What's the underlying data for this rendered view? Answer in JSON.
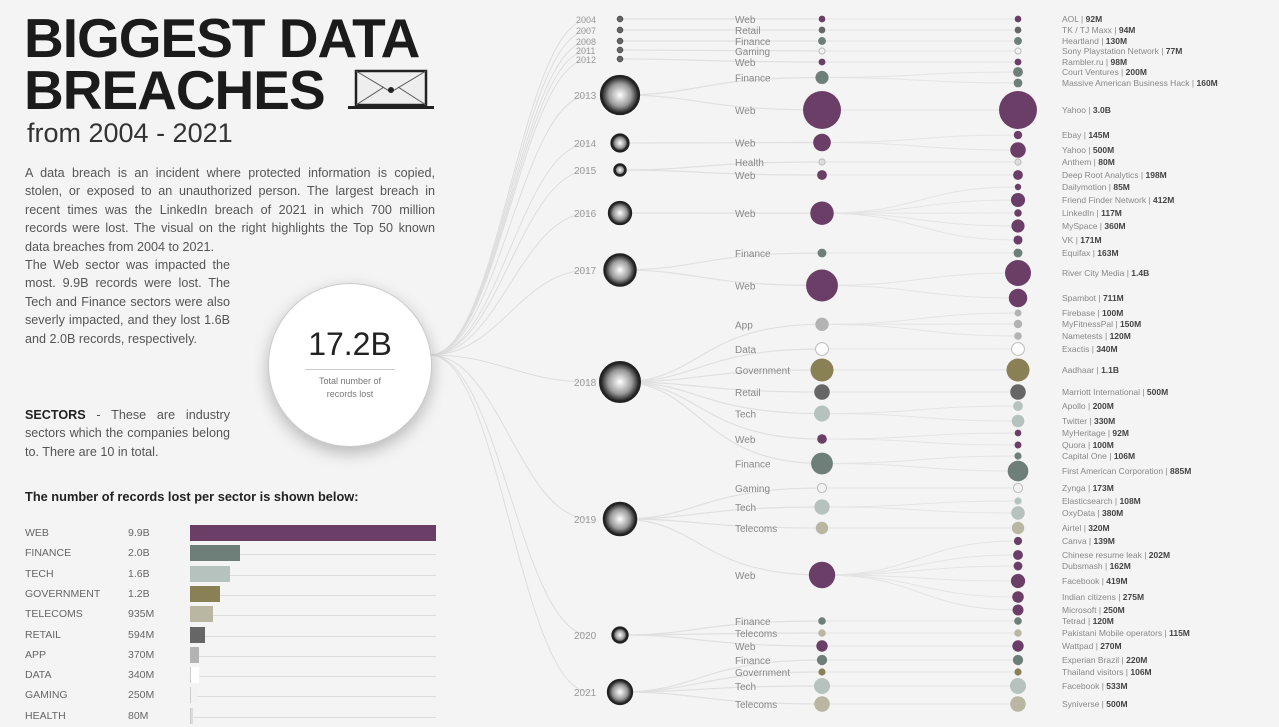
{
  "header": {
    "title_line1": "BIGGEST DATA",
    "title_line2": "BREACHES",
    "subtitle": "from 2004 - 2021",
    "icon": "laptop-envelope-icon"
  },
  "intro": {
    "paragraph1": "A data breach is an incident where protected information is copied, stolen, or exposed to an unauthorized person. The largest breach  in recent times was the LinkedIn breach of 2021 in which 700 million records were lost. The visual on the right  highlights  the Top 50 known data breaches from 2004 to 2021.",
    "paragraph2": "The Web sector was impacted the most. 9.9B records were lost. The Tech and Finance sectors were also severly impacted, and they lost 1.6B and 2.0B records, respectively.",
    "sectors_term": "SECTORS",
    "paragraph3": " -  These are industry sectors which the companies belong to. There are 10 in total."
  },
  "total": {
    "value": "17.2B",
    "label": "Total number of records lost"
  },
  "colors": {
    "Web": "#6b3e68",
    "Finance": "#6e7f79",
    "Tech": "#b5c2bd",
    "Government": "#8a8055",
    "Telecoms": "#b9b7a1",
    "Retail": "#666666",
    "App": "#b3b3b3",
    "Data": "#ffffff",
    "Gaming": "#f2f2f2",
    "Health": "#dddddd"
  },
  "chart_data": [
    {
      "type": "bar",
      "title": "The number of records lost per sector is shown below:",
      "categories": [
        "WEB",
        "FINANCE",
        "TECH",
        "GOVERNMENT",
        "TELECOMS",
        "RETAIL",
        "APP",
        "DATA",
        "GAMING",
        "HEALTH"
      ],
      "value_labels": [
        "9.9B",
        "2.0B",
        "1.6B",
        "1.2B",
        "935M",
        "594M",
        "370M",
        "340M",
        "250M",
        "80M"
      ],
      "values_millions": [
        9900,
        2000,
        1600,
        1200,
        935,
        594,
        370,
        340,
        250,
        80
      ],
      "sector_keys": [
        "Web",
        "Finance",
        "Tech",
        "Government",
        "Telecoms",
        "Retail",
        "App",
        "Data",
        "Gaming",
        "Health"
      ]
    },
    {
      "type": "bubble-tree",
      "years": [
        "2004",
        "2007",
        "2008",
        "2011",
        "2012",
        "2013",
        "2014",
        "2015",
        "2016",
        "2017",
        "2018",
        "2019",
        "2020",
        "2021"
      ],
      "breaches": [
        {
          "year": "2004",
          "sector": "Web",
          "company": "AOL",
          "label": "92M",
          "m": 92
        },
        {
          "year": "2007",
          "sector": "Retail",
          "company": "TK / TJ Maxx",
          "label": "94M",
          "m": 94
        },
        {
          "year": "2008",
          "sector": "Finance",
          "company": "Heartland",
          "label": "130M",
          "m": 130
        },
        {
          "year": "2011",
          "sector": "Gaming",
          "company": "Sony Playstation Network",
          "label": "77M",
          "m": 77
        },
        {
          "year": "2012",
          "sector": "Web",
          "company": "Rambler.ru",
          "label": "98M",
          "m": 98
        },
        {
          "year": "2013",
          "sector": "Finance",
          "company": "Court Ventures",
          "label": "200M",
          "m": 200
        },
        {
          "year": "2013",
          "sector": "Finance",
          "company": "Massive American Business Hack",
          "label": "160M",
          "m": 160
        },
        {
          "year": "2013",
          "sector": "Web",
          "company": "Yahoo",
          "label": "3.0B",
          "m": 3000
        },
        {
          "year": "2014",
          "sector": "Web",
          "company": "Ebay",
          "label": "145M",
          "m": 145
        },
        {
          "year": "2014",
          "sector": "Web",
          "company": "Yahoo",
          "label": "500M",
          "m": 500
        },
        {
          "year": "2015",
          "sector": "Health",
          "company": "Anthem",
          "label": "80M",
          "m": 80
        },
        {
          "year": "2015",
          "sector": "Web",
          "company": "Deep Root Analytics",
          "label": "198M",
          "m": 198
        },
        {
          "year": "2016",
          "sector": "Web",
          "company": "Dailymotion",
          "label": "85M",
          "m": 85
        },
        {
          "year": "2016",
          "sector": "Web",
          "company": "Friend Finder Network",
          "label": "412M",
          "m": 412
        },
        {
          "year": "2016",
          "sector": "Web",
          "company": "LinkedIn",
          "label": "117M",
          "m": 117
        },
        {
          "year": "2016",
          "sector": "Web",
          "company": "MySpace",
          "label": "360M",
          "m": 360
        },
        {
          "year": "2016",
          "sector": "Web",
          "company": "VK",
          "label": "171M",
          "m": 171
        },
        {
          "year": "2017",
          "sector": "Finance",
          "company": "Equifax",
          "label": "163M",
          "m": 163
        },
        {
          "year": "2017",
          "sector": "Web",
          "company": "River City Media",
          "label": "1.4B",
          "m": 1400
        },
        {
          "year": "2017",
          "sector": "Web",
          "company": "Spambot",
          "label": "711M",
          "m": 711
        },
        {
          "year": "2018",
          "sector": "App",
          "company": "Firebase",
          "label": "100M",
          "m": 100
        },
        {
          "year": "2018",
          "sector": "App",
          "company": "MyFitnessPal",
          "label": "150M",
          "m": 150
        },
        {
          "year": "2018",
          "sector": "App",
          "company": "Nametests",
          "label": "120M",
          "m": 120
        },
        {
          "year": "2018",
          "sector": "Data",
          "company": "Exactis",
          "label": "340M",
          "m": 340
        },
        {
          "year": "2018",
          "sector": "Government",
          "company": "Aadhaar",
          "label": "1.1B",
          "m": 1100
        },
        {
          "year": "2018",
          "sector": "Retail",
          "company": "Marriott International",
          "label": "500M",
          "m": 500
        },
        {
          "year": "2018",
          "sector": "Tech",
          "company": "Apollo",
          "label": "200M",
          "m": 200
        },
        {
          "year": "2018",
          "sector": "Tech",
          "company": "Twitter",
          "label": "330M",
          "m": 330
        },
        {
          "year": "2018",
          "sector": "Web",
          "company": "MyHeritage",
          "label": "92M",
          "m": 92
        },
        {
          "year": "2018",
          "sector": "Web",
          "company": "Quora",
          "label": "100M",
          "m": 100
        },
        {
          "year": "2018",
          "sector": "Finance",
          "company": "Capital One",
          "label": "106M",
          "m": 106
        },
        {
          "year": "2018",
          "sector": "Finance",
          "company": "First American Corporation",
          "label": "885M",
          "m": 885
        },
        {
          "year": "2019",
          "sector": "Gaming",
          "company": "Zynga",
          "label": "173M",
          "m": 173
        },
        {
          "year": "2019",
          "sector": "Tech",
          "company": "Elasticsearch",
          "label": "108M",
          "m": 108
        },
        {
          "year": "2019",
          "sector": "Tech",
          "company": "OxyData",
          "label": "380M",
          "m": 380
        },
        {
          "year": "2019",
          "sector": "Telecoms",
          "company": "Airtel",
          "label": "320M",
          "m": 320
        },
        {
          "year": "2019",
          "sector": "Web",
          "company": "Canva",
          "label": "139M",
          "m": 139
        },
        {
          "year": "2019",
          "sector": "Web",
          "company": "Chinese resume leak",
          "label": "202M",
          "m": 202
        },
        {
          "year": "2019",
          "sector": "Web",
          "company": "Dubsmash",
          "label": "162M",
          "m": 162
        },
        {
          "year": "2019",
          "sector": "Web",
          "company": "Facebook",
          "label": "419M",
          "m": 419
        },
        {
          "year": "2019",
          "sector": "Web",
          "company": "Indian citizens",
          "label": "275M",
          "m": 275
        },
        {
          "year": "2019",
          "sector": "Web",
          "company": "Microsoft",
          "label": "250M",
          "m": 250
        },
        {
          "year": "2020",
          "sector": "Finance",
          "company": "Tetrad",
          "label": "120M",
          "m": 120
        },
        {
          "year": "2020",
          "sector": "Telecoms",
          "company": "Pakistani Mobile operators",
          "label": "115M",
          "m": 115
        },
        {
          "year": "2020",
          "sector": "Web",
          "company": "Wattpad",
          "label": "270M",
          "m": 270
        },
        {
          "year": "2021",
          "sector": "Finance",
          "company": "Experian Brazil",
          "label": "220M",
          "m": 220
        },
        {
          "year": "2021",
          "sector": "Government",
          "company": "Thailand visitors",
          "label": "106M",
          "m": 106
        },
        {
          "year": "2021",
          "sector": "Tech",
          "company": "Facebook",
          "label": "533M",
          "m": 533
        },
        {
          "year": "2021",
          "sector": "Telecoms",
          "company": "Syniverse",
          "label": "500M",
          "m": 500
        }
      ]
    }
  ]
}
